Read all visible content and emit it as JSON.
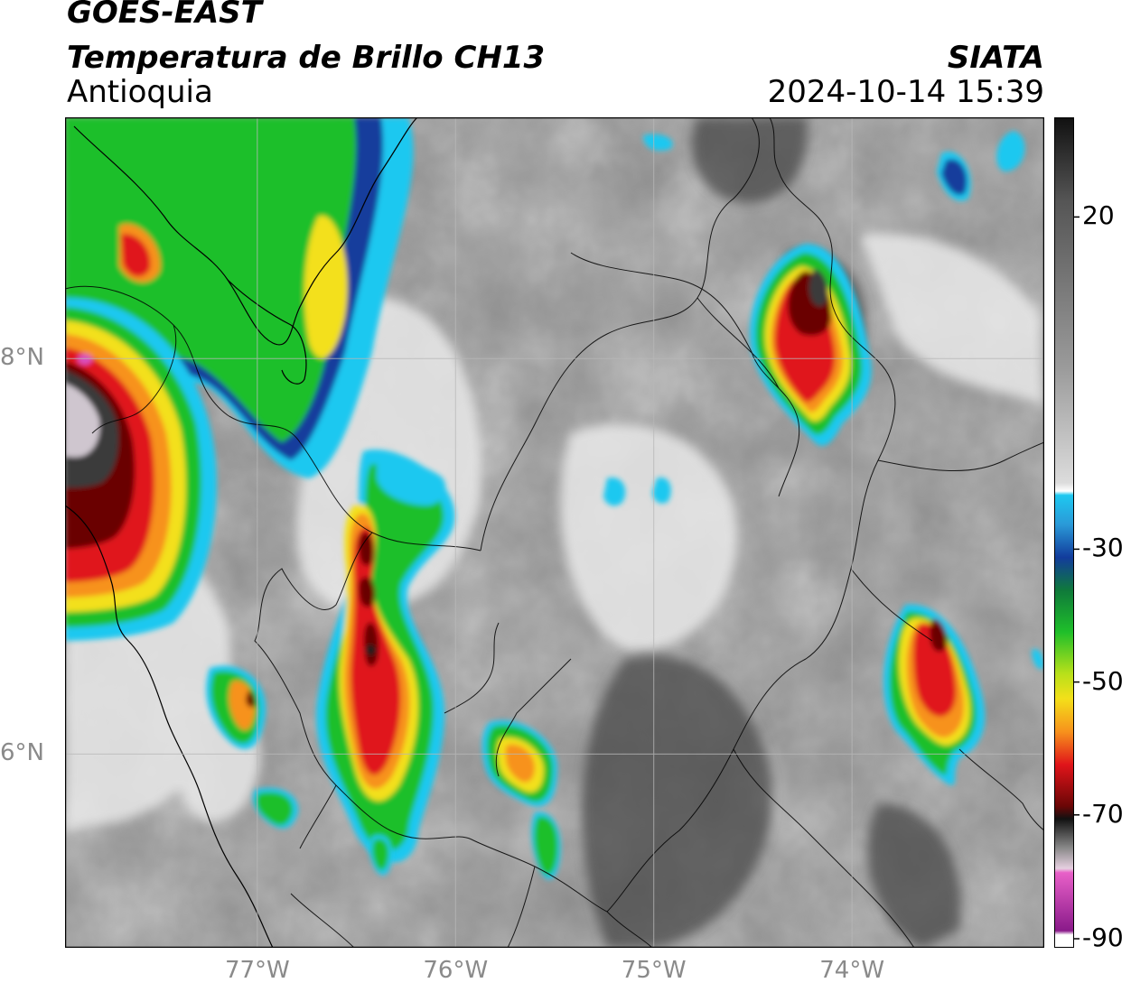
{
  "header": {
    "title_line1": "GOES-EAST",
    "title_line2": "Temperatura de Brillo CH13",
    "region": "Antioquia",
    "agency": "SIATA",
    "datetime": "2024-10-14 15:39"
  },
  "axes": {
    "latitudes": [
      {
        "value": 8,
        "label": "8°N"
      },
      {
        "value": 6,
        "label": "6°N"
      }
    ],
    "longitudes": [
      {
        "value": -77,
        "label": "77°W"
      },
      {
        "value": -76,
        "label": "76°W"
      },
      {
        "value": -75,
        "label": "75°W"
      },
      {
        "value": -74,
        "label": "74°W"
      }
    ],
    "lon_range": [
      -77.97,
      -73.03
    ],
    "lat_range": [
      5.02,
      9.22
    ]
  },
  "colorbar": {
    "range": [
      -90,
      35
    ],
    "ticks": [
      {
        "value": 20,
        "label": "20"
      },
      {
        "value": -30,
        "label": "-30"
      },
      {
        "value": -50,
        "label": "-50"
      },
      {
        "value": -70,
        "label": "-70"
      },
      {
        "value": -90,
        "label": "-90"
      }
    ]
  },
  "colors": {
    "background_gray": "#8c8c8c",
    "light_cloud": "#e6e6e6",
    "cyan": "#1ec8f0",
    "blue": "#123c9c",
    "green": "#1fbf2a",
    "yellow": "#f3e01a",
    "orange": "#f7921c",
    "red": "#e0141a",
    "dark_red": "#6a0606",
    "magenta": "#d94fc0",
    "grid": "#b0b0b0"
  }
}
